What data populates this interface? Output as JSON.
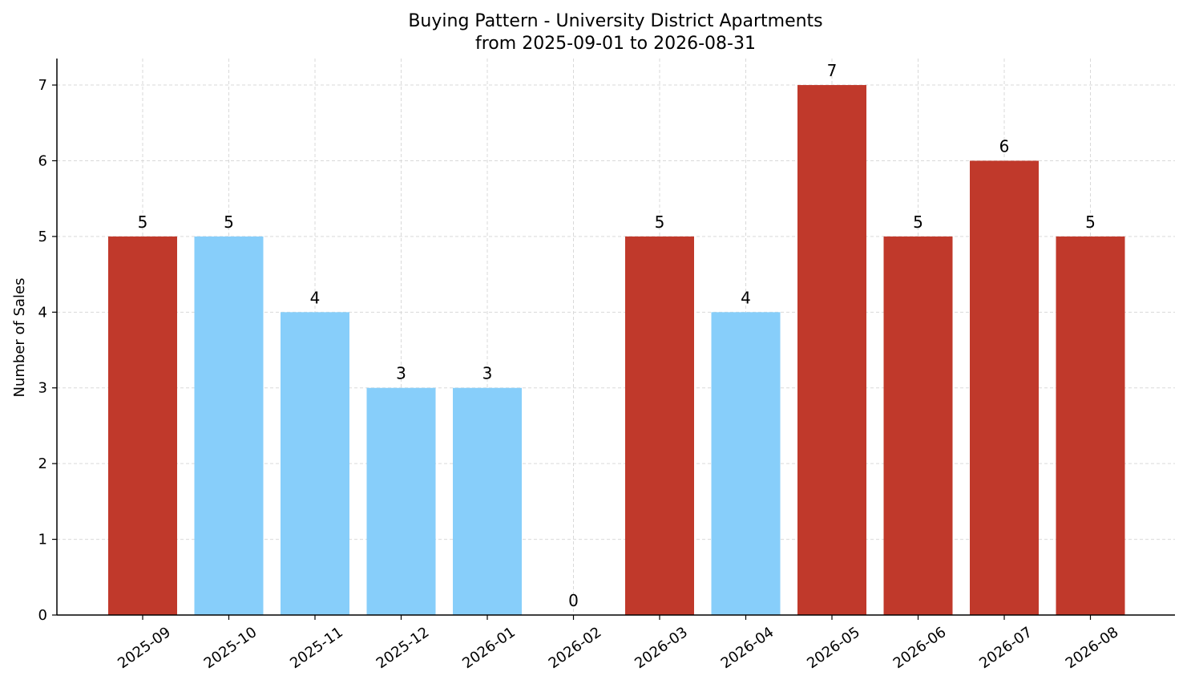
{
  "chart_data": {
    "type": "bar",
    "title": "Buying Pattern - University District Apartments",
    "subtitle": "from 2025-09-01 to 2026-08-31",
    "xlabel": "",
    "ylabel": "Number of Sales",
    "categories": [
      "2025-09",
      "2025-10",
      "2025-11",
      "2025-12",
      "2026-01",
      "2026-02",
      "2026-03",
      "2026-04",
      "2026-05",
      "2026-06",
      "2026-07",
      "2026-08"
    ],
    "values": [
      5,
      5,
      4,
      3,
      3,
      0,
      5,
      4,
      7,
      5,
      6,
      5
    ],
    "bar_colors": [
      "#c0392b",
      "#87cefa",
      "#87cefa",
      "#87cefa",
      "#87cefa",
      "#87cefa",
      "#c0392b",
      "#87cefa",
      "#c0392b",
      "#c0392b",
      "#c0392b",
      "#c0392b"
    ],
    "y_ticks": [
      0,
      1,
      2,
      3,
      4,
      5,
      6,
      7
    ],
    "ylim": [
      0,
      7.35
    ],
    "grid": true,
    "data_labels": true,
    "x_tick_rotation": "rotated 35 degrees",
    "colors": {
      "high": "#c0392b",
      "low": "#87cefa",
      "grid": "#d9d9d9",
      "axis": "#000000"
    }
  }
}
